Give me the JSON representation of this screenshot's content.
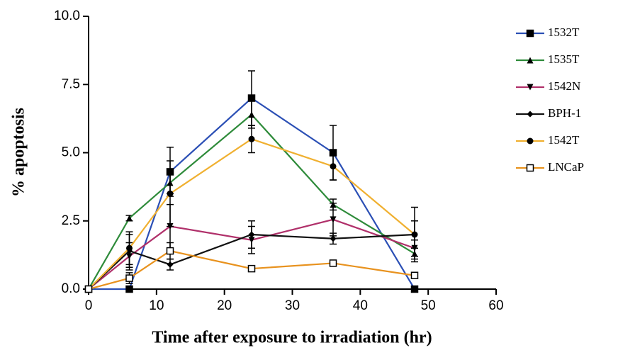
{
  "chart_data": {
    "type": "line",
    "x_label": "Time after exposure to irradiation (hr)",
    "y_label": "% apoptosis",
    "x": [
      0,
      6,
      12,
      24,
      36,
      48
    ],
    "xlim": [
      0,
      60
    ],
    "xticks": [
      0,
      10,
      20,
      30,
      40,
      50,
      60
    ],
    "ylim": [
      0,
      10
    ],
    "yticks": [
      {
        "value": 0,
        "label": "0.0"
      },
      2.5,
      {
        "value": 5,
        "label": "5.0"
      },
      7.5,
      {
        "value": 10,
        "label": "10.0"
      }
    ],
    "grid": false,
    "legend": "right",
    "series": [
      {
        "name": "1532T",
        "color": "#2b4fb5",
        "marker": "square",
        "values": [
          0,
          0,
          4.3,
          7.0,
          5.0,
          0
        ],
        "errors": [
          0,
          0,
          0.9,
          1.0,
          1.0,
          0
        ]
      },
      {
        "name": "1535T",
        "color": "#2e8b3a",
        "marker": "triangle",
        "values": [
          0,
          2.6,
          3.9,
          6.4,
          3.1,
          1.3
        ],
        "errors": [
          0,
          0.1,
          0.4,
          0.5,
          0.2,
          0.2
        ]
      },
      {
        "name": "1542N",
        "color": "#b0306a",
        "marker": "triangle-down",
        "values": [
          0,
          1.2,
          2.3,
          1.8,
          2.55,
          1.5
        ],
        "errors": [
          0,
          0.5,
          0.8,
          0.5,
          0.6,
          0.3
        ]
      },
      {
        "name": "BPH-1",
        "color": "#111111",
        "marker": "diamond",
        "values": [
          0,
          1.4,
          0.9,
          2.0,
          1.85,
          2.0
        ],
        "errors": [
          0,
          0.6,
          0.2,
          0.5,
          0.2,
          1.0
        ]
      },
      {
        "name": "1542T",
        "color": "#f0b030",
        "marker": "circle",
        "values": [
          0,
          1.5,
          3.5,
          5.5,
          4.5,
          2.0
        ],
        "errors": [
          0,
          0.6,
          1.2,
          0.5,
          0.5,
          0.5
        ]
      },
      {
        "name": "LNCaP",
        "color": "#e8921e",
        "marker": "open-square",
        "values": [
          0,
          0.4,
          1.4,
          0.75,
          0.95,
          0.5
        ],
        "errors": [
          0,
          0.2,
          0.3,
          0.1,
          0.1,
          0.1
        ]
      }
    ]
  }
}
